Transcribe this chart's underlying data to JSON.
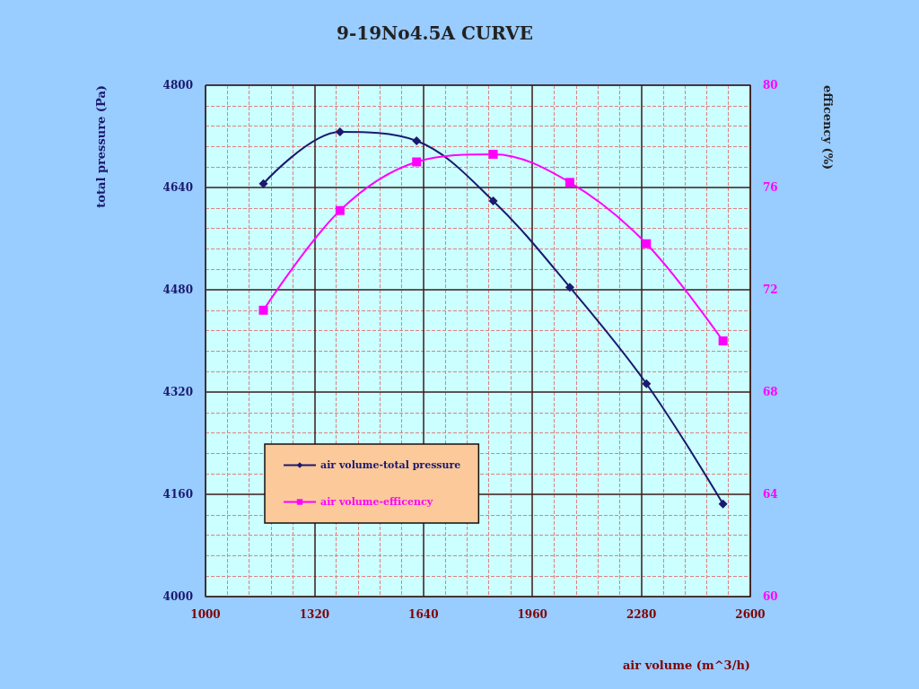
{
  "chart_data": {
    "type": "line",
    "title": "9-19No4.5A CURVE",
    "xlabel": "air volume (m^3/h)",
    "ylabel": "total pressure (Pa)",
    "y2label": "efficency (%)",
    "x": [
      1170,
      1395,
      1620,
      1845,
      2070,
      2295,
      2520
    ],
    "series": [
      {
        "name": "air volume-total pressure",
        "color": "#1a1a6e",
        "marker": "diamond",
        "values": [
          4646,
          4727,
          4713,
          4619,
          4484,
          4333,
          4145
        ]
      },
      {
        "name": "air volume-efficency",
        "color": "#ff00ff",
        "marker": "square",
        "axis": "y2",
        "values": [
          71.2,
          75.1,
          77.0,
          77.3,
          76.2,
          73.8,
          70.0
        ]
      }
    ],
    "xlim": [
      1000,
      2600
    ],
    "xticks": [
      1000,
      {
        "value": 1064,
        "label": null
      },
      {
        "value": 1128,
        "label": null
      },
      {
        "value": 1192,
        "label": null
      },
      {
        "value": 1256,
        "label": null
      },
      1320,
      {
        "value": 1384,
        "label": null
      },
      {
        "value": 1448,
        "label": null
      },
      {
        "value": 1512,
        "label": null
      },
      {
        "value": 1576,
        "label": null
      },
      1640,
      {
        "value": 1704,
        "label": null
      },
      {
        "value": 1768,
        "label": null
      },
      {
        "value": 1832,
        "label": null
      },
      {
        "value": 1896,
        "label": null
      },
      1960,
      {
        "value": 2024,
        "label": null
      },
      {
        "value": 2088,
        "label": null
      },
      {
        "value": 2152,
        "label": null
      },
      {
        "value": 2216,
        "label": null
      },
      2280,
      {
        "value": 2344,
        "label": null
      },
      {
        "value": 2408,
        "label": null
      },
      {
        "value": 2472,
        "label": null
      },
      {
        "value": 2536,
        "label": null
      },
      2600
    ],
    "ylim": [
      4000,
      4800
    ],
    "yticks": [
      4000,
      {
        "value": 4032,
        "label": null
      },
      {
        "value": 4064,
        "label": null
      },
      {
        "value": 4096,
        "label": null
      },
      {
        "value": 4128,
        "label": null
      },
      4160,
      {
        "value": 4192,
        "label": null
      },
      {
        "value": 4224,
        "label": null
      },
      {
        "value": 4256,
        "label": null
      },
      {
        "value": 4288,
        "label": null
      },
      4320,
      {
        "value": 4352,
        "label": null
      },
      {
        "value": 4384,
        "label": null
      },
      {
        "value": 4416,
        "label": null
      },
      {
        "value": 4448,
        "label": null
      },
      4480,
      {
        "value": 4512,
        "label": null
      },
      {
        "value": 4544,
        "label": null
      },
      {
        "value": 4576,
        "label": null
      },
      {
        "value": 4608,
        "label": null
      },
      4640,
      {
        "value": 4672,
        "label": null
      },
      {
        "value": 4704,
        "label": null
      },
      {
        "value": 4736,
        "label": null
      },
      {
        "value": 4768,
        "label": null
      },
      4800
    ],
    "y2lim": [
      60,
      80
    ],
    "y2ticks": [
      60,
      64,
      68,
      72,
      76,
      80
    ],
    "grid": true,
    "legend": "bottom left"
  }
}
